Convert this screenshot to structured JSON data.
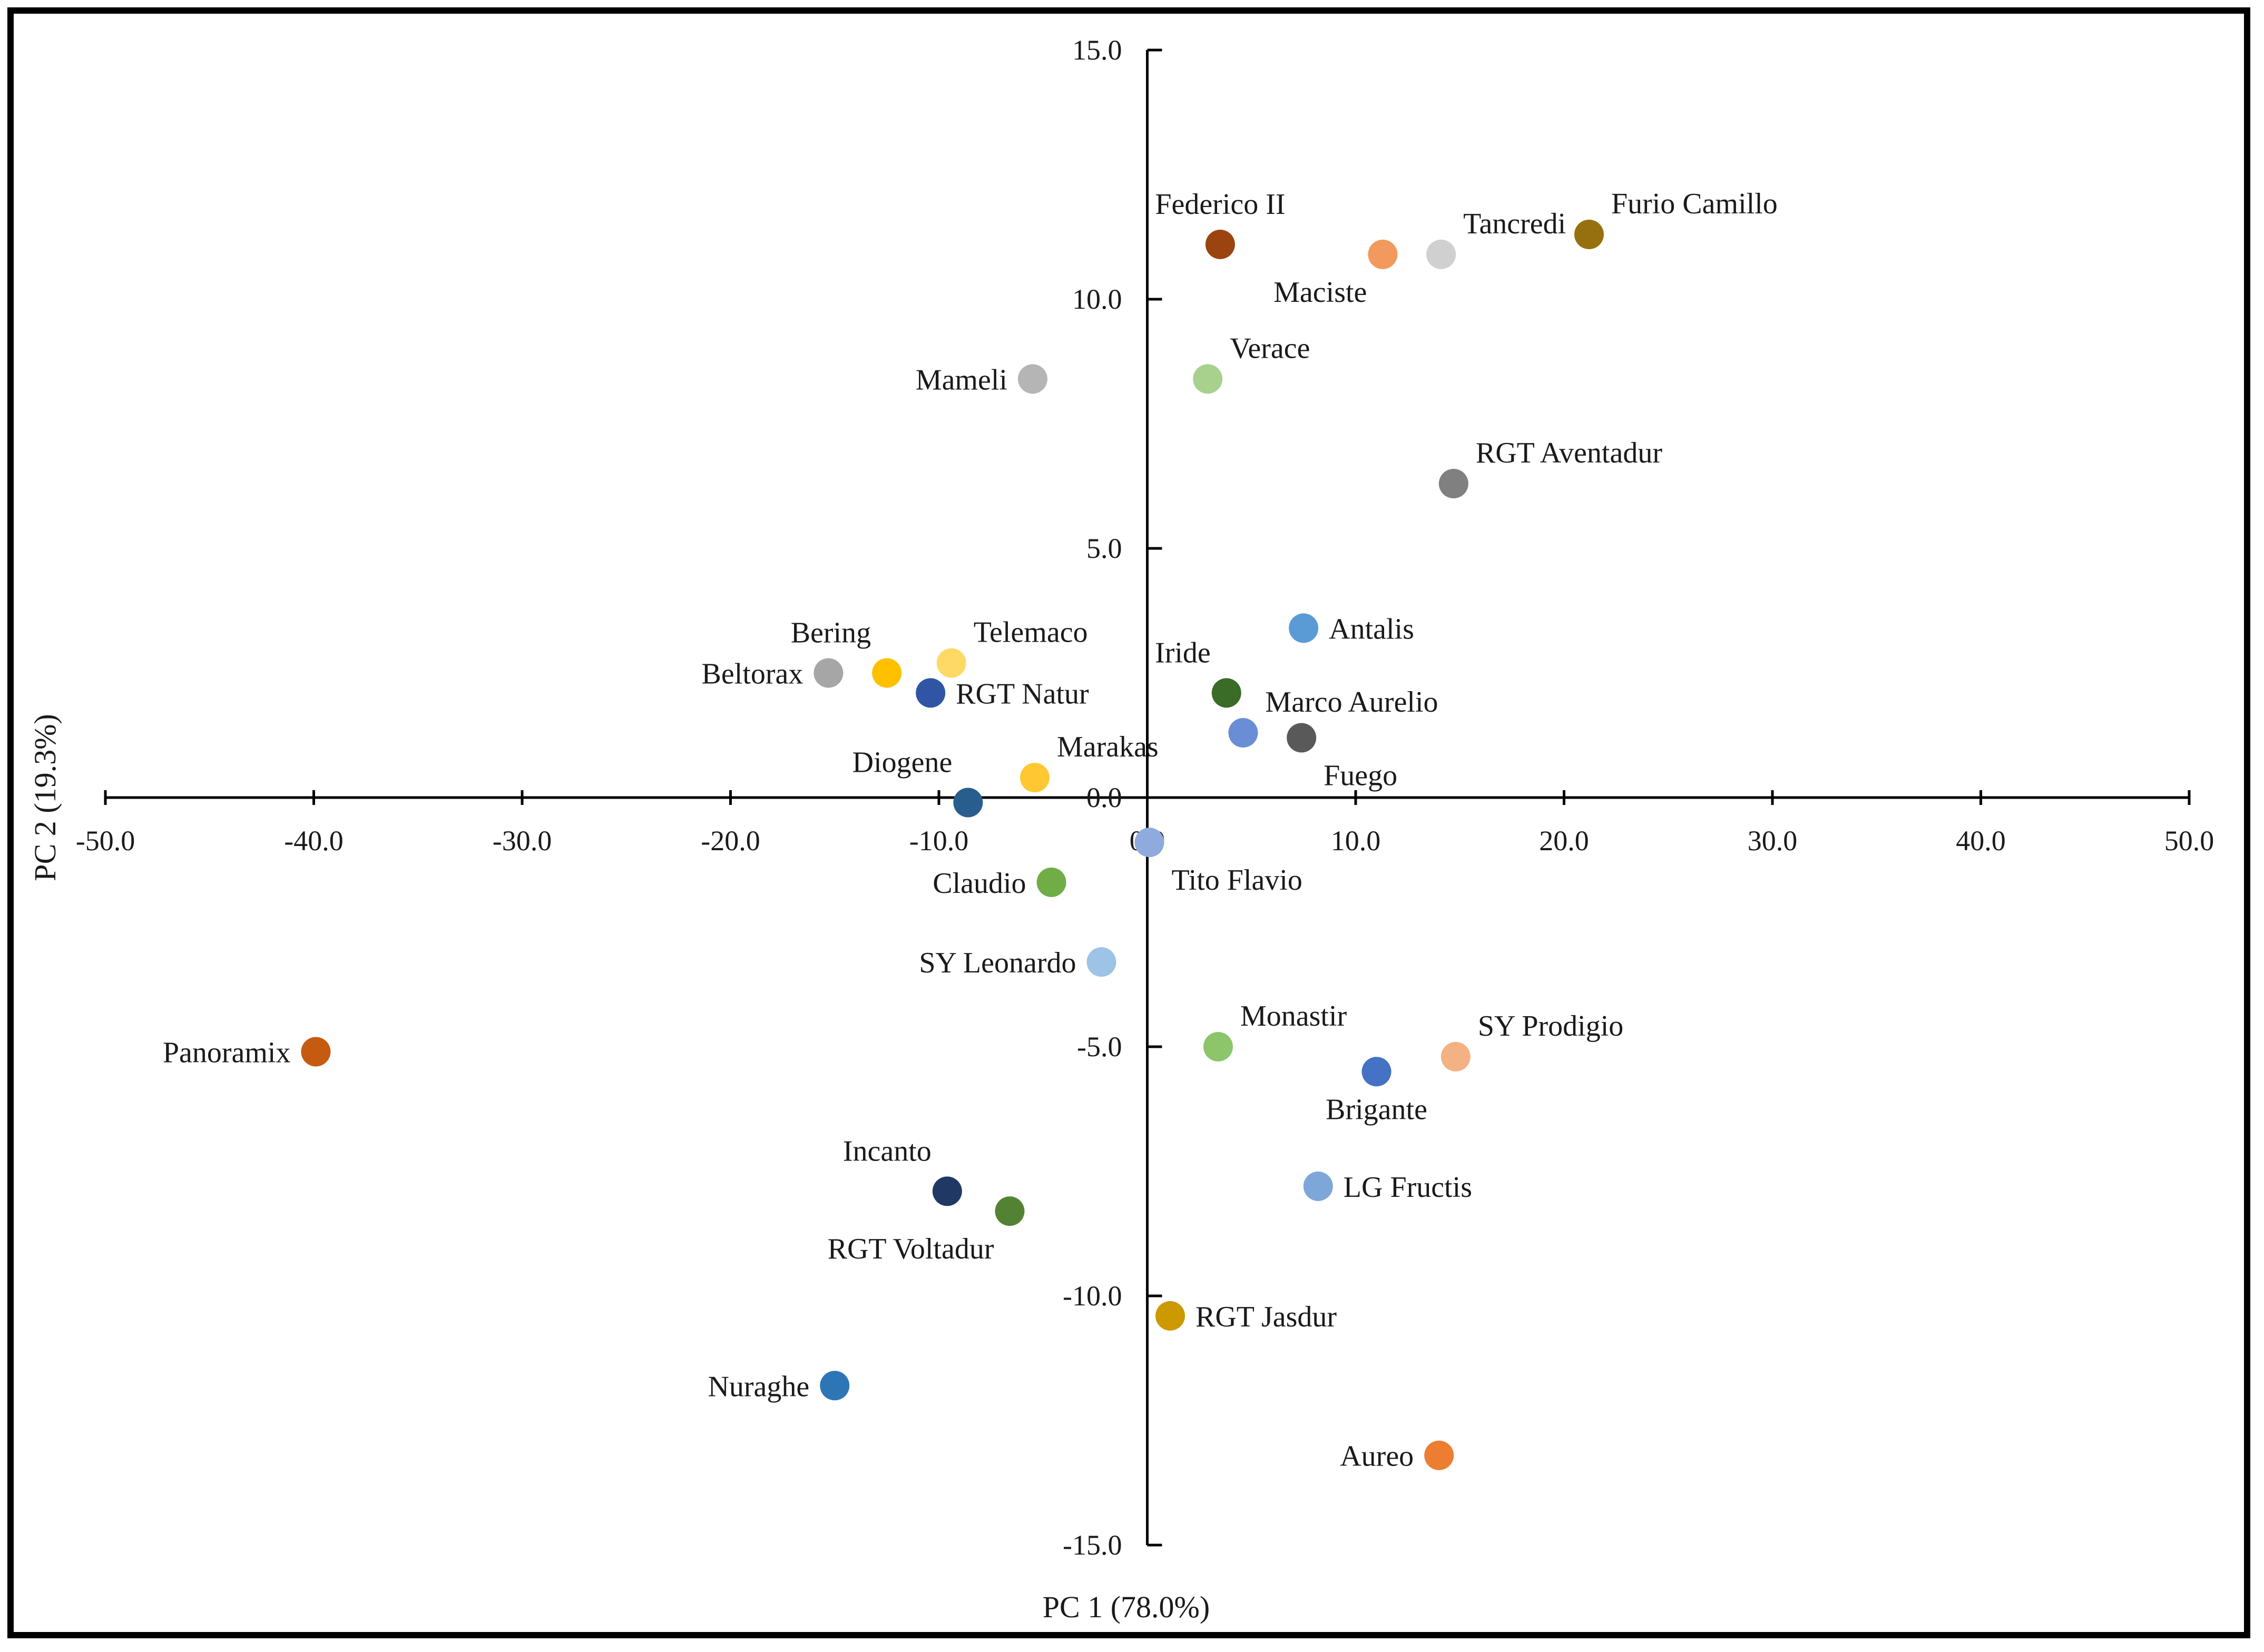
{
  "chart_data": {
    "type": "scatter",
    "xlabel": "PC 1 (78.0%)",
    "ylabel": "PC 2 (19.3%)",
    "xlim": [
      -50,
      50
    ],
    "ylim": [
      -15,
      15
    ],
    "x_ticks": [
      "-50.0",
      "-40.0",
      "-30.0",
      "-20.0",
      "-10.0",
      "0.0",
      "10.0",
      "20.0",
      "30.0",
      "40.0",
      "50.0"
    ],
    "y_ticks": [
      "15.0",
      "10.0",
      "5.0",
      "0.0",
      "-5.0",
      "-10.0",
      "-15.0"
    ],
    "grid": false,
    "points": [
      {
        "label": "Federico II",
        "x": 3.5,
        "y": 11.1,
        "color": "#9c4410",
        "label_pos": "above"
      },
      {
        "label": "Maciste",
        "x": 11.3,
        "y": 10.9,
        "color": "#f29a5e",
        "label_pos": "below-left"
      },
      {
        "label": "Tancredi",
        "x": 14.1,
        "y": 10.9,
        "color": "#d0d0d0",
        "label_pos": "above-right"
      },
      {
        "label": "Furio Camillo",
        "x": 21.2,
        "y": 11.3,
        "color": "#96700e",
        "label_pos": "above-right"
      },
      {
        "label": "Mameli",
        "x": -5.5,
        "y": 8.4,
        "color": "#b5b5b5",
        "label_pos": "left"
      },
      {
        "label": "Verace",
        "x": 2.9,
        "y": 8.4,
        "color": "#a9d18e",
        "label_pos": "above-right"
      },
      {
        "label": "RGT Aventadur",
        "x": 14.7,
        "y": 6.3,
        "color": "#808080",
        "label_pos": "above-right"
      },
      {
        "label": "Antalis",
        "x": 7.5,
        "y": 3.4,
        "color": "#5b9bd5",
        "label_pos": "right"
      },
      {
        "label": "Bering",
        "x": -12.5,
        "y": 2.5,
        "color": "#ffc000",
        "label_pos": "above-left"
      },
      {
        "label": "Telemaco",
        "x": -9.4,
        "y": 2.7,
        "color": "#ffd966",
        "label_pos": "above-right"
      },
      {
        "label": "Beltorax",
        "x": -15.3,
        "y": 2.5,
        "color": "#a6a6a6",
        "label_pos": "left"
      },
      {
        "label": "RGT Natur",
        "x": -10.4,
        "y": 2.1,
        "color": "#2f55a4",
        "label_pos": "right"
      },
      {
        "label": "Iride",
        "x": 3.8,
        "y": 2.1,
        "color": "#3a6b27",
        "label_pos": "above-left"
      },
      {
        "label": "Marco Aurelio",
        "x": 4.6,
        "y": 1.3,
        "color": "#6a8ed6",
        "label_pos": "above-right"
      },
      {
        "label": "Fuego",
        "x": 7.4,
        "y": 1.2,
        "color": "#595959",
        "label_pos": "below-right"
      },
      {
        "label": "Marakas",
        "x": -5.4,
        "y": 0.4,
        "color": "#ffc832",
        "label_pos": "above-right"
      },
      {
        "label": "Diogene",
        "x": -8.6,
        "y": -0.1,
        "color": "#285e8e",
        "label_pos": "above-left"
      },
      {
        "label": "Tito Flavio",
        "x": 0.1,
        "y": -0.9,
        "color": "#8faadc",
        "label_pos": "below-right"
      },
      {
        "label": "Claudio",
        "x": -4.6,
        "y": -1.7,
        "color": "#70ad47",
        "label_pos": "left"
      },
      {
        "label": "SY Leonardo",
        "x": -2.2,
        "y": -3.3,
        "color": "#9dc3e6",
        "label_pos": "left"
      },
      {
        "label": "Panoramix",
        "x": -39.9,
        "y": -5.1,
        "color": "#c55a11",
        "label_pos": "left"
      },
      {
        "label": "Monastir",
        "x": 3.4,
        "y": -5.0,
        "color": "#8cc56a",
        "label_pos": "above-right"
      },
      {
        "label": "SY Prodigio",
        "x": 14.8,
        "y": -5.2,
        "color": "#f4b183",
        "label_pos": "above-right"
      },
      {
        "label": "Brigante",
        "x": 11.0,
        "y": -5.5,
        "color": "#4472c4",
        "label_pos": "below"
      },
      {
        "label": "Incanto",
        "x": -9.6,
        "y": -7.9,
        "color": "#203864",
        "label_pos": "above-left"
      },
      {
        "label": "RGT Voltadur",
        "x": -6.6,
        "y": -8.3,
        "color": "#548235",
        "label_pos": "below-left"
      },
      {
        "label": "LG Fructis",
        "x": 8.2,
        "y": -7.8,
        "color": "#7da7d9",
        "label_pos": "right"
      },
      {
        "label": "RGT Jasdur",
        "x": 1.1,
        "y": -10.4,
        "color": "#cc9900",
        "label_pos": "right"
      },
      {
        "label": "Nuraghe",
        "x": -15.0,
        "y": -11.8,
        "color": "#2e75b6",
        "label_pos": "left"
      },
      {
        "label": "Aureo",
        "x": 14.0,
        "y": -13.2,
        "color": "#ed7d31",
        "label_pos": "left"
      }
    ]
  }
}
